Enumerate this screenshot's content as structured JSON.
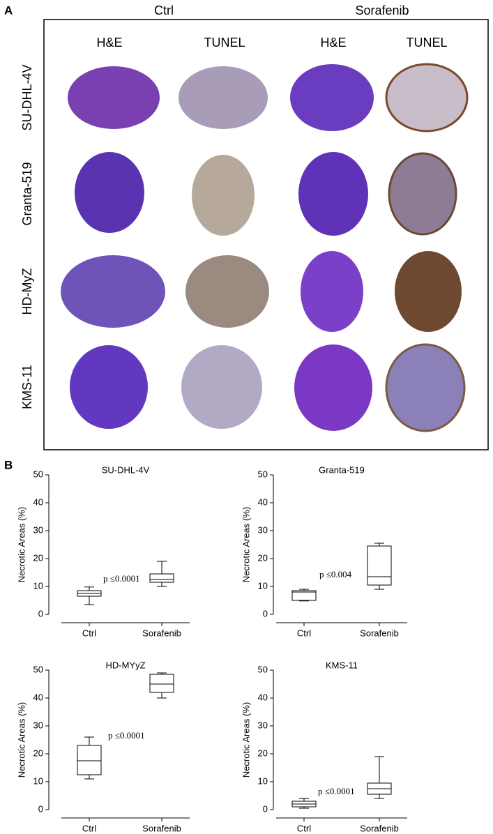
{
  "panel_a": {
    "label": "A",
    "groups": [
      "Ctrl",
      "Sorafenib"
    ],
    "stains": [
      "H&E",
      "TUNEL",
      "H&E",
      "TUNEL"
    ],
    "rows": [
      "SU-DHL-4V",
      "Granta-519",
      "HD-MyZ",
      "KMS-11"
    ]
  },
  "panel_b": {
    "label": "B"
  },
  "chart_data": [
    {
      "type": "box",
      "title": "SU-DHL-4V",
      "y_label": "Necrotic Areas (%)",
      "categories": [
        "Ctrl",
        "Sorafenib"
      ],
      "color": "#000000",
      "boxes": [
        {
          "min": 3.5,
          "q1": 6.5,
          "median": 7.5,
          "q3": 8.5,
          "max": 9.8
        },
        {
          "min": 10,
          "q1": 11.5,
          "median": 12.5,
          "q3": 14.5,
          "max": 19
        }
      ],
      "annotation": "p ≤0.0001",
      "ylim": [
        0,
        50
      ],
      "yticks": [
        0,
        10,
        20,
        30,
        40,
        50
      ]
    },
    {
      "type": "box",
      "title": "Granta-519",
      "y_label": "Necrotic Areas (%)",
      "categories": [
        "Ctrl",
        "Sorafenib"
      ],
      "color": "#000000",
      "boxes": [
        {
          "min": 4.8,
          "q1": 5,
          "median": 8,
          "q3": 8.5,
          "max": 9
        },
        {
          "min": 9,
          "q1": 10.5,
          "median": 13.5,
          "q3": 24.5,
          "max": 25.5
        }
      ],
      "annotation": "p ≤0.004",
      "ylim": [
        0,
        50
      ],
      "yticks": [
        0,
        10,
        20,
        30,
        40,
        50
      ]
    },
    {
      "type": "box",
      "title": "HD-MYyZ",
      "y_label": "Necrotic Areas (%)",
      "categories": [
        "Ctrl",
        "Sorafenib"
      ],
      "color": "#000000",
      "boxes": [
        {
          "min": 11,
          "q1": 12.5,
          "median": 17.5,
          "q3": 23,
          "max": 26
        },
        {
          "min": 40,
          "q1": 42,
          "median": 45,
          "q3": 48.5,
          "max": 49
        }
      ],
      "annotation": "p ≤0.0001",
      "ylim": [
        0,
        50
      ],
      "yticks": [
        0,
        10,
        20,
        30,
        40,
        50
      ]
    },
    {
      "type": "box",
      "title": "KMS-11",
      "y_label": "Necrotic Areas (%)",
      "categories": [
        "Ctrl",
        "Sorafenib"
      ],
      "color": "#000000",
      "boxes": [
        {
          "min": 0.5,
          "q1": 1,
          "median": 2,
          "q3": 3,
          "max": 4
        },
        {
          "min": 4,
          "q1": 5.5,
          "median": 7.5,
          "q3": 9.5,
          "max": 19
        }
      ],
      "annotation": "p ≤0.0001",
      "ylim": [
        0,
        50
      ],
      "yticks": [
        0,
        10,
        20,
        30,
        40,
        50
      ]
    }
  ]
}
